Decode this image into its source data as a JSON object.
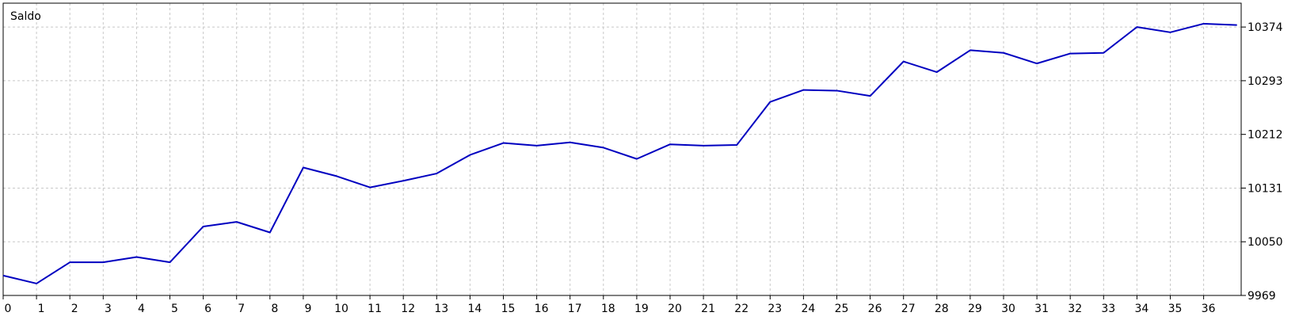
{
  "chart_data": {
    "type": "line",
    "legend": "Saldo",
    "x": [
      0,
      1,
      2,
      3,
      4,
      5,
      6,
      7,
      8,
      9,
      10,
      11,
      12,
      13,
      14,
      15,
      16,
      17,
      18,
      19,
      20,
      21,
      22,
      23,
      24,
      25,
      26,
      27,
      28,
      29,
      30,
      31,
      32,
      33,
      34,
      35,
      36,
      37
    ],
    "xticks": [
      "0",
      "1",
      "2",
      "3",
      "4",
      "5",
      "6",
      "7",
      "8",
      "9",
      "10",
      "11",
      "12",
      "13",
      "14",
      "15",
      "16",
      "17",
      "18",
      "19",
      "20",
      "21",
      "22",
      "23",
      "24",
      "25",
      "26",
      "27",
      "28",
      "29",
      "30",
      "31",
      "32",
      "33",
      "34",
      "35",
      "36"
    ],
    "series": [
      {
        "name": "Saldo",
        "color": "#0000c0",
        "values": [
          9999,
          9987,
          10019,
          10019,
          10027,
          10019,
          10073,
          10080,
          10064,
          10162,
          10149,
          10132,
          10142,
          10153,
          10181,
          10199,
          10195,
          10200,
          10192,
          10175,
          10197,
          10195,
          10196,
          10261,
          10279,
          10278,
          10270,
          10322,
          10306,
          10339,
          10335,
          10319,
          10334,
          10335,
          10374,
          10366,
          10379,
          10377
        ]
      }
    ],
    "yticks": [
      "9969",
      "10050",
      "10131",
      "10212",
      "10293",
      "10374"
    ],
    "ylim": [
      9969,
      10410
    ],
    "grid": true
  }
}
